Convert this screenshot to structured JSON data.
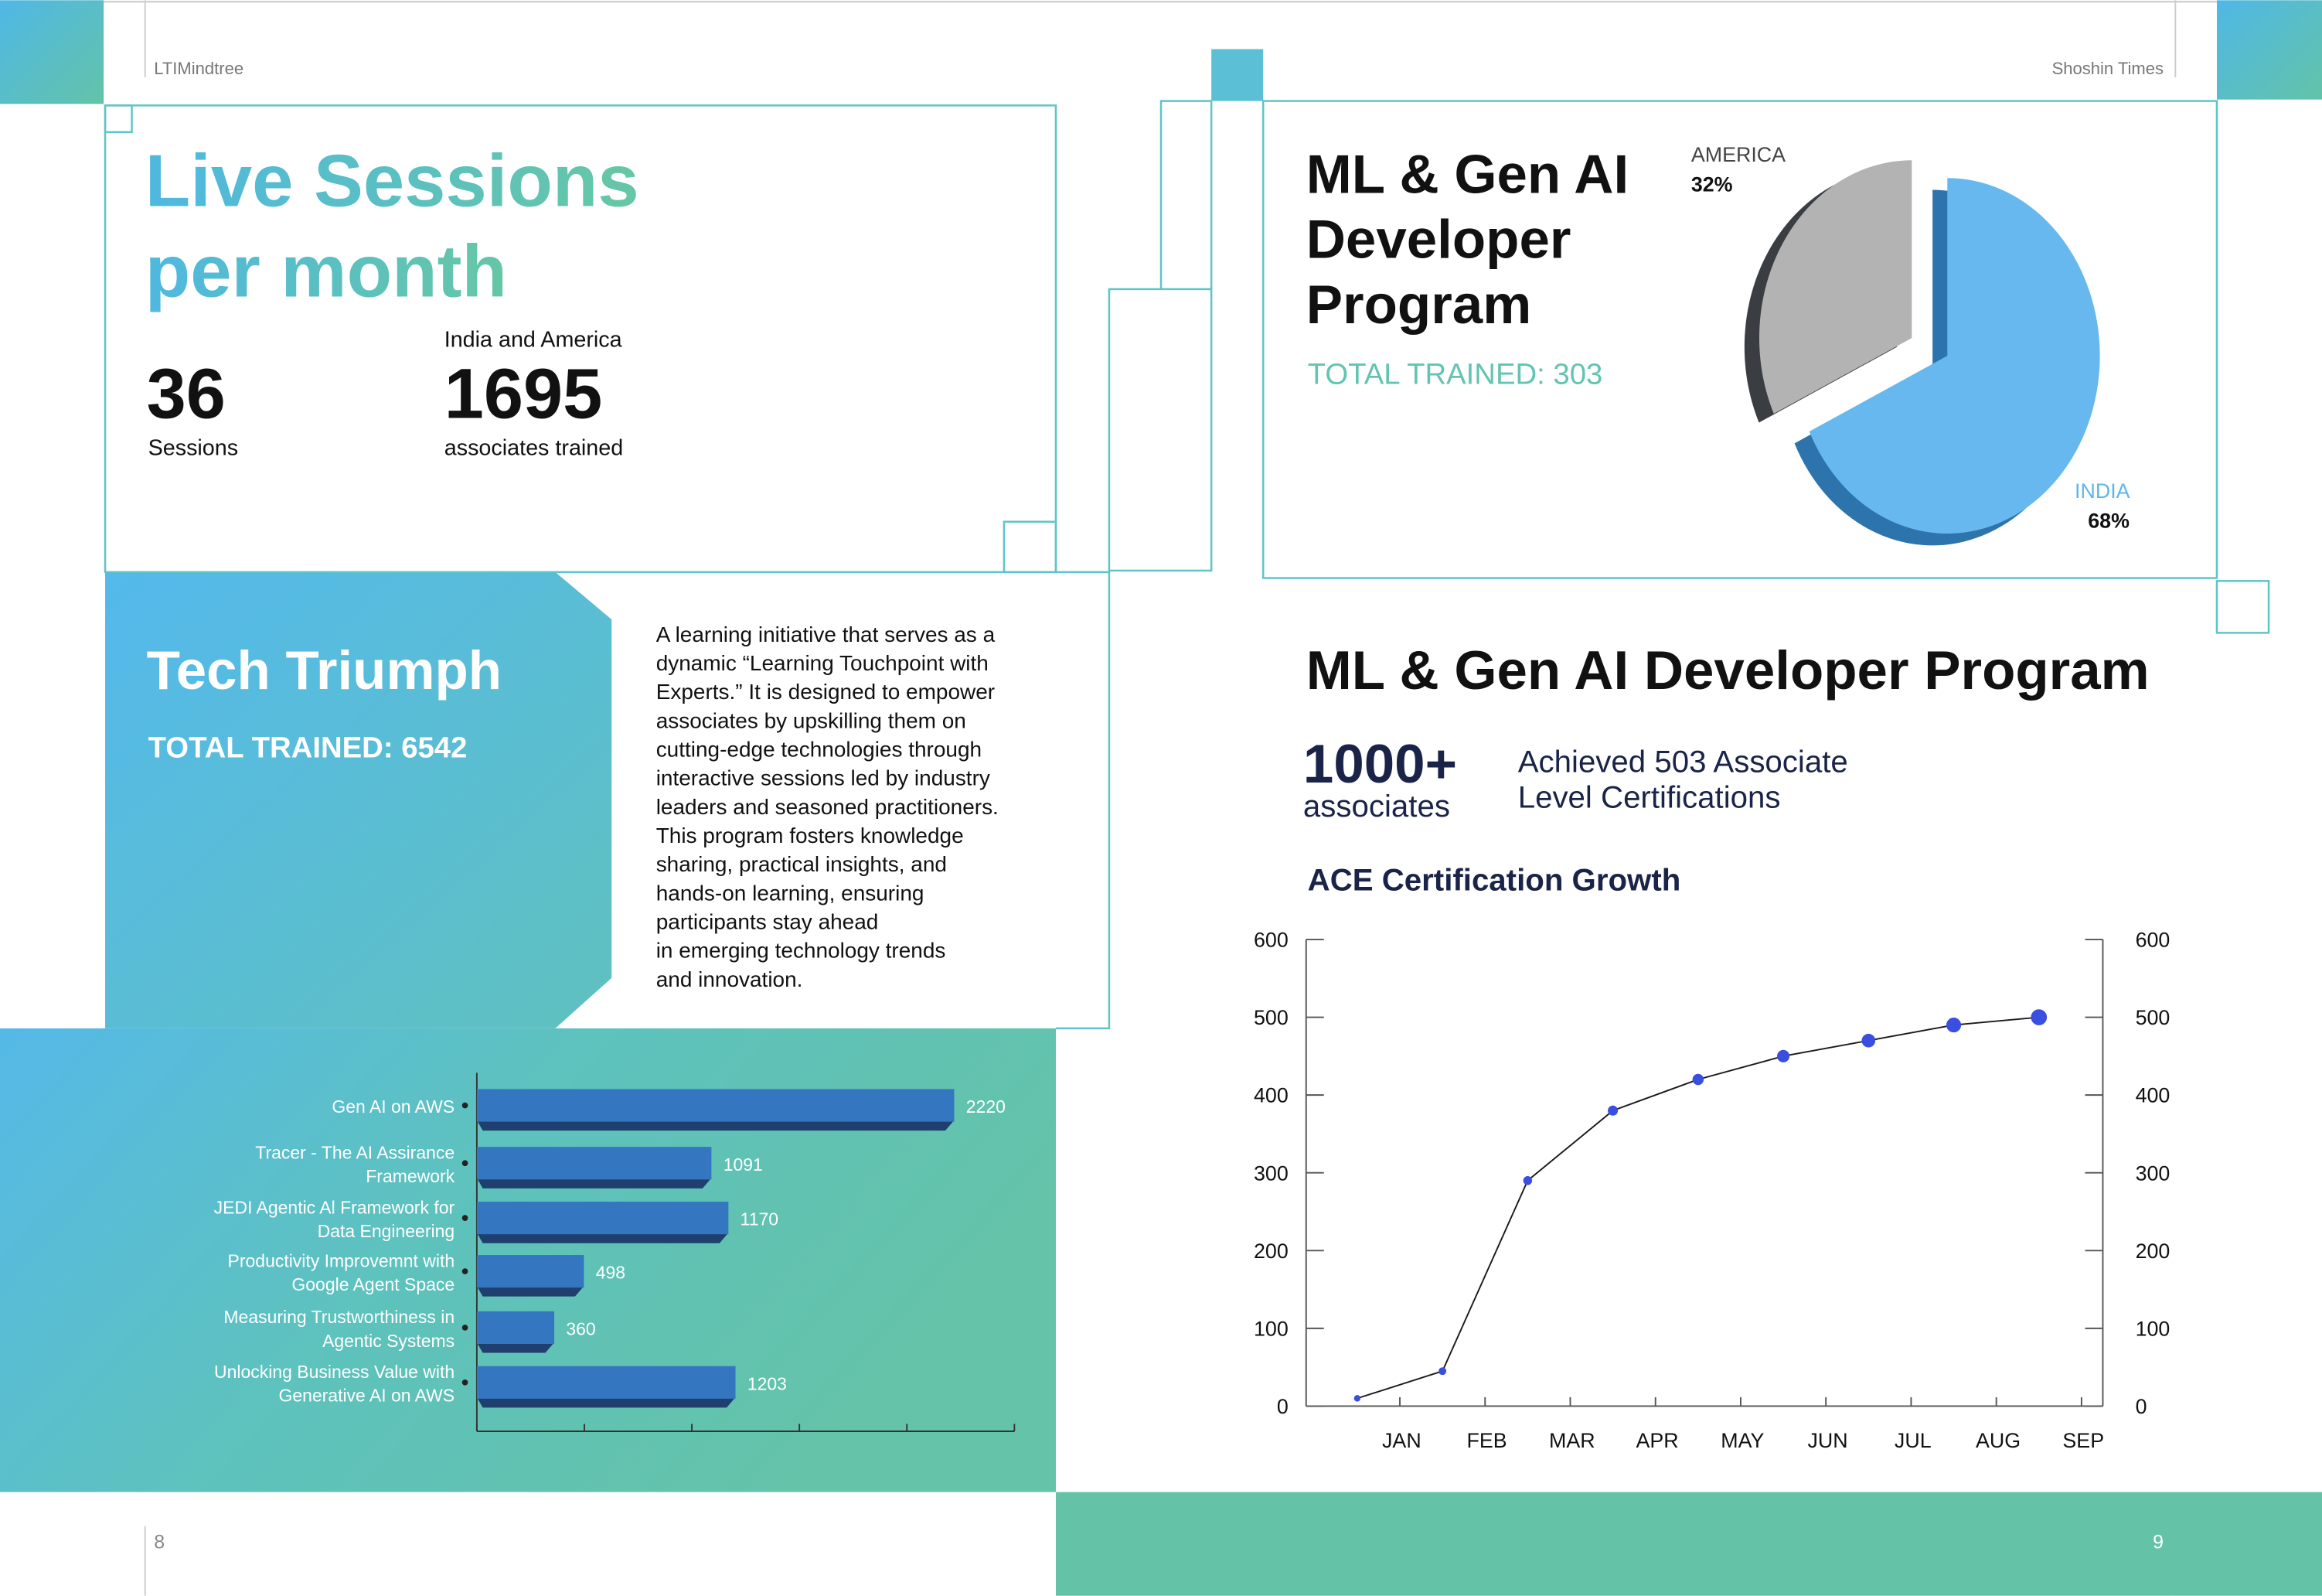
{
  "header": {
    "left": "LTIMindtree",
    "right": "Shoshin Times"
  },
  "live_sessions": {
    "title": [
      "Live Sessions",
      "per month"
    ],
    "sessions_value": "36",
    "sessions_label": "Sessions",
    "region": "India and America",
    "associates_value": "1695",
    "associates_label": "associates trained"
  },
  "tech_triumph": {
    "title": "Tech Triumph",
    "total": "TOTAL TRAINED: 6542",
    "description": [
      "A learning initiative that serves as a",
      "dynamic “Learning Touchpoint with",
      "Experts.” It is designed to empower",
      "associates by upskilling them on",
      "cutting-edge technologies through",
      "interactive sessions led by industry",
      "leaders and seasoned practitioners.",
      "This program fosters knowledge",
      "sharing, practical insights, and",
      "hands-on learning, ensuring",
      "participants stay ahead",
      "in emerging technology trends",
      "and innovation."
    ]
  },
  "bar_chart": {
    "type": "bar",
    "orientation": "horizontal",
    "categories": [
      [
        "Gen AI on AWS"
      ],
      [
        "Tracer - The AI Assirance",
        "Framework"
      ],
      [
        "JEDI Agentic Al Framework for",
        "Data Engineering"
      ],
      [
        "Productivity Improvemnt with",
        "Google Agent Space"
      ],
      [
        "Measuring Trustworthiness in",
        "Agentic Systems"
      ],
      [
        "Unlocking Business Value with",
        "Generative AI on AWS"
      ]
    ],
    "values": [
      2220,
      1091,
      1170,
      498,
      360,
      1203
    ],
    "color": "#3477c0",
    "xlim": [
      0,
      2500
    ],
    "xticks": [
      0,
      500,
      1000,
      1500,
      2000,
      2500
    ]
  },
  "pie_chart": {
    "type": "pie",
    "title": [
      "ML & Gen AI",
      "Developer",
      "Program"
    ],
    "subtitle": "TOTAL TRAINED: 303",
    "categories": [
      "AMERICA",
      "INDIA"
    ],
    "values": [
      32,
      68
    ],
    "value_labels": [
      "32%",
      "68%"
    ],
    "colors": [
      "#b3b3b3",
      "#66b8ee"
    ]
  },
  "program": {
    "title": "ML & Gen AI Developer Program",
    "stat_value": "1000+",
    "stat_label": "associates",
    "achievement": [
      "Achieved 503 Associate",
      "Level  Certifications"
    ]
  },
  "line_chart": {
    "type": "line",
    "title": "ACE Certification Growth",
    "categories": [
      "JAN",
      "FEB",
      "MAR",
      "APR",
      "MAY",
      "JUN",
      "JUL",
      "AUG",
      "SEP"
    ],
    "values": [
      10,
      45,
      290,
      380,
      420,
      450,
      470,
      490,
      500
    ],
    "color": "#1a1a1a",
    "marker_color": "#3a4fe0",
    "ylim": [
      0,
      600
    ],
    "yticks": [
      0,
      100,
      200,
      300,
      400,
      500,
      600
    ],
    "y2lim": [
      0,
      600
    ],
    "y2ticks": [
      0,
      100,
      200,
      300,
      400,
      500,
      600
    ]
  },
  "page_numbers": [
    "8",
    "9"
  ]
}
